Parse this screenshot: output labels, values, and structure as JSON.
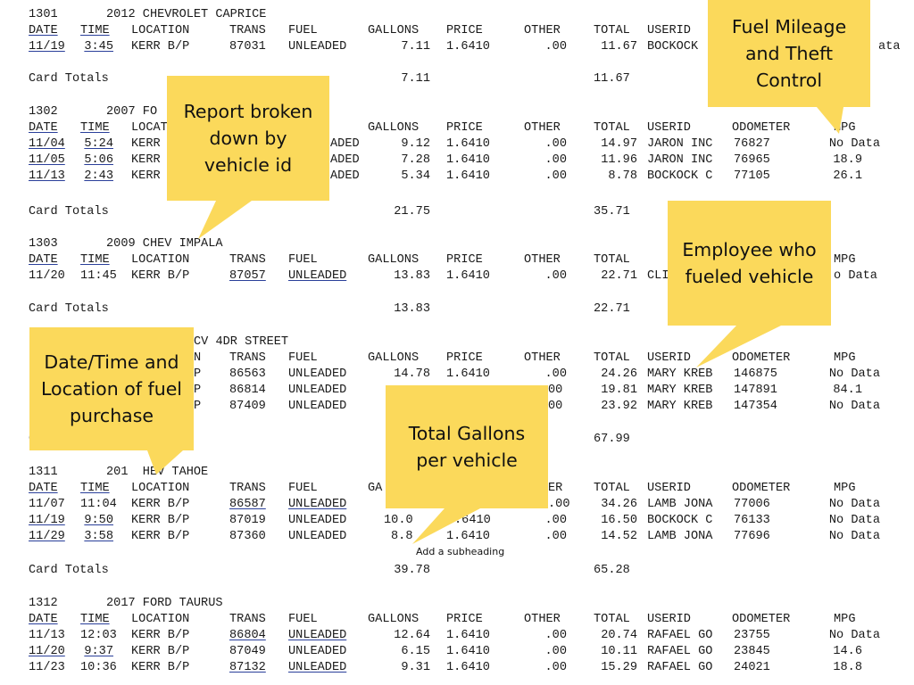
{
  "report": {
    "headers": [
      "DATE",
      "TIME",
      "LOCATION",
      "TRANS",
      "FUEL",
      "GALLONS",
      "PRICE",
      "OTHER",
      "TOTAL",
      "USERID",
      "ODOMETER",
      "MPG"
    ],
    "card_totals_label": "Card Totals",
    "vehicles": [
      {
        "id": "1301",
        "name": "2012 CHEVROLET CAPRICE",
        "rows": [
          [
            "11/19",
            "3:45",
            "KERR B/P",
            "87031",
            "UNLEADED",
            "7.11",
            "1.6410",
            ".00",
            "11.67",
            "BOCKOCK",
            "",
            "ata"
          ]
        ],
        "total_gallons": "7.11",
        "total_amount": "11.67"
      },
      {
        "id": "1302",
        "name": "2007 FO",
        "rows": [
          [
            "11/04",
            "5:24",
            "KERR",
            "",
            "ADED",
            "9.12",
            "1.6410",
            ".00",
            "14.97",
            "JARON INC",
            "76827",
            "No Data"
          ],
          [
            "11/05",
            "5:06",
            "KERR",
            "",
            "ADED",
            "7.28",
            "1.6410",
            ".00",
            "11.96",
            "JARON INC",
            "76965",
            "18.9"
          ],
          [
            "11/13",
            "2:43",
            "KERR",
            "",
            "ADED",
            "5.34",
            "1.6410",
            ".00",
            "8.78",
            "BOCKOCK C",
            "77105",
            "26.1"
          ]
        ],
        "total_gallons": "21.75",
        "total_amount": "35.71"
      },
      {
        "id": "1303",
        "name": "2009 CHEV IMPALA",
        "rows": [
          [
            "11/20",
            "11:45",
            "KERR B/P",
            "87057",
            "UNLEADED",
            "13.83",
            "1.6410",
            ".00",
            "22.71",
            "CLI",
            "",
            "o Data"
          ]
        ],
        "total_gallons": "13.83",
        "total_amount": "22.71"
      },
      {
        "id": "",
        "name": "CV 4DR STREET",
        "rows": [
          [
            "",
            "",
            "N",
            "TRANS",
            "FUEL",
            "GALLONS",
            "PRICE",
            "OTHER",
            "TOTAL",
            "USERID",
            "ODOMETER",
            "MPG"
          ],
          [
            "",
            "",
            "P",
            "86563",
            "UNLEADED",
            "14.78",
            "1.6410",
            ".00",
            "24.26",
            "MARY KREB",
            "146875",
            "No Data"
          ],
          [
            "",
            "",
            "P",
            "86814",
            "UNLEADED",
            "",
            "",
            "00",
            "19.81",
            "MARY KREB",
            "147891",
            "84.1"
          ],
          [
            "",
            "",
            "P",
            "87409",
            "UNLEADED",
            "",
            "",
            "00",
            "23.92",
            "MARY KREB",
            "147354",
            "No Data"
          ]
        ],
        "total_gallons": "",
        "total_amount": "67.99"
      },
      {
        "id": "1311",
        "name": "201  HEV TAHOE",
        "rows": [
          [
            "11/07",
            "11:04",
            "KERR B/P",
            "86587",
            "UNLEADED",
            "",
            "",
            ".00",
            "34.26",
            "LAMB JONA",
            "77006",
            "No Data"
          ],
          [
            "11/19",
            "9:50",
            "KERR B/P",
            "87019",
            "UNLEADED",
            "10.0",
            ".6410",
            ".00",
            "16.50",
            "BOCKOCK C",
            "76133",
            "No Data"
          ],
          [
            "11/29",
            "3:58",
            "KERR B/P",
            "87360",
            "UNLEADED",
            "8.8",
            "1.6410",
            ".00",
            "14.52",
            "LAMB JONA",
            "77696",
            "No Data"
          ]
        ],
        "total_gallons": "39.78",
        "total_amount": "65.28"
      },
      {
        "id": "1312",
        "name": "2017 FORD TAURUS",
        "rows": [
          [
            "11/13",
            "12:03",
            "KERR B/P",
            "86804",
            "UNLEADED",
            "12.64",
            "1.6410",
            ".00",
            "20.74",
            "RAFAEL GO",
            "23755",
            "No Data"
          ],
          [
            "11/20",
            "9:37",
            "KERR B/P",
            "87049",
            "UNLEADED",
            "6.15",
            "1.6410",
            ".00",
            "10.11",
            "RAFAEL GO",
            "23845",
            "14.6"
          ],
          [
            "11/23",
            "10:36",
            "KERR B/P",
            "87132",
            "UNLEADED",
            "9.31",
            "1.6410",
            ".00",
            "15.29",
            "RAFAEL GO",
            "24021",
            "18.8"
          ]
        ],
        "total_gallons": "",
        "total_amount": ""
      }
    ],
    "fragments": {
      "gallons_partial": "GA",
      "other_partial": "ER",
      "card_totals_partial": "C"
    }
  },
  "callouts": {
    "fuel_mileage": "Fuel Mileage and Theft Control",
    "report_broken": "Report broken down by vehicle id",
    "employee": "Employee who fueled vehicle",
    "datetime_location": "Date/Time and Location of fuel purchase",
    "total_gallons": "Total Gallons per vehicle",
    "subheading": "Add a subheading"
  },
  "colors": {
    "callout_bg": "#fbd95b",
    "underline": "#2a3f9a"
  }
}
